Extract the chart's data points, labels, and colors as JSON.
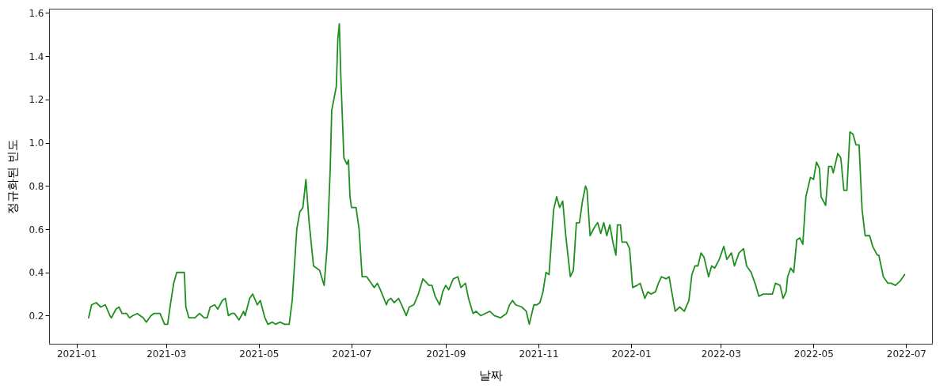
{
  "chart_data": {
    "type": "line",
    "xlabel": "날짜",
    "ylabel": "정규화된 빈도",
    "x": [
      "2021-01-09",
      "2021-01-11",
      "2021-01-14",
      "2021-01-17",
      "2021-01-20",
      "2021-01-23",
      "2021-01-24",
      "2021-01-27",
      "2021-01-29",
      "2021-01-31",
      "2021-02-03",
      "2021-02-05",
      "2021-02-07",
      "2021-02-10",
      "2021-02-14",
      "2021-02-16",
      "2021-02-19",
      "2021-02-21",
      "2021-02-25",
      "2021-02-28",
      "2021-03-02",
      "2021-03-04",
      "2021-03-06",
      "2021-03-08",
      "2021-03-10",
      "2021-03-13",
      "2021-03-14",
      "2021-03-16",
      "2021-03-20",
      "2021-03-23",
      "2021-03-26",
      "2021-03-28",
      "2021-03-30",
      "2021-04-02",
      "2021-04-04",
      "2021-04-07",
      "2021-04-09",
      "2021-04-11",
      "2021-04-13",
      "2021-04-15",
      "2021-04-18",
      "2021-04-21",
      "2021-04-22",
      "2021-04-25",
      "2021-04-27",
      "2021-04-30",
      "2021-05-02",
      "2021-05-05",
      "2021-05-07",
      "2021-05-10",
      "2021-05-12",
      "2021-05-15",
      "2021-05-18",
      "2021-05-21",
      "2021-05-23",
      "2021-05-26",
      "2021-05-28",
      "2021-05-30",
      "2021-06-01",
      "2021-06-03",
      "2021-06-06",
      "2021-06-08",
      "2021-06-10",
      "2021-06-13",
      "2021-06-15",
      "2021-06-17",
      "2021-06-18",
      "2021-06-21",
      "2021-06-22",
      "2021-06-23",
      "2021-06-24",
      "2021-06-26",
      "2021-06-28",
      "2021-06-29",
      "2021-06-30",
      "2021-07-01",
      "2021-07-04",
      "2021-07-06",
      "2021-07-08",
      "2021-07-11",
      "2021-07-14",
      "2021-07-16",
      "2021-07-18",
      "2021-07-20",
      "2021-07-24",
      "2021-07-25",
      "2021-07-27",
      "2021-07-29",
      "2021-08-01",
      "2021-08-03",
      "2021-08-06",
      "2021-08-08",
      "2021-08-11",
      "2021-08-14",
      "2021-08-17",
      "2021-08-21",
      "2021-08-23",
      "2021-08-25",
      "2021-08-28",
      "2021-08-30",
      "2021-09-01",
      "2021-09-03",
      "2021-09-06",
      "2021-09-09",
      "2021-09-11",
      "2021-09-14",
      "2021-09-16",
      "2021-09-19",
      "2021-09-21",
      "2021-09-24",
      "2021-09-27",
      "2021-09-30",
      "2021-10-03",
      "2021-10-07",
      "2021-10-09",
      "2021-10-11",
      "2021-10-13",
      "2021-10-15",
      "2021-10-17",
      "2021-10-21",
      "2021-10-24",
      "2021-10-26",
      "2021-10-29",
      "2021-10-31",
      "2021-11-02",
      "2021-11-04",
      "2021-11-06",
      "2021-11-08",
      "2021-11-11",
      "2021-11-13",
      "2021-11-15",
      "2021-11-17",
      "2021-11-19",
      "2021-11-22",
      "2021-11-24",
      "2021-11-26",
      "2021-11-28",
      "2021-11-30",
      "2021-12-02",
      "2021-12-03",
      "2021-12-05",
      "2021-12-08",
      "2021-12-10",
      "2021-12-12",
      "2021-12-14",
      "2021-12-16",
      "2021-12-18",
      "2021-12-20",
      "2021-12-22",
      "2021-12-23",
      "2021-12-25",
      "2021-12-26",
      "2021-12-29",
      "2021-12-31",
      "2022-01-02",
      "2022-01-05",
      "2022-01-07",
      "2022-01-10",
      "2022-01-12",
      "2022-01-14",
      "2022-01-17",
      "2022-01-19",
      "2022-01-21",
      "2022-01-24",
      "2022-01-26",
      "2022-01-28",
      "2022-01-30",
      "2022-02-02",
      "2022-02-05",
      "2022-02-08",
      "2022-02-10",
      "2022-02-12",
      "2022-02-14",
      "2022-02-16",
      "2022-02-18",
      "2022-02-21",
      "2022-02-23",
      "2022-02-25",
      "2022-02-28",
      "2022-03-03",
      "2022-03-05",
      "2022-03-08",
      "2022-03-10",
      "2022-03-13",
      "2022-03-16",
      "2022-03-18",
      "2022-03-21",
      "2022-03-24",
      "2022-03-26",
      "2022-03-29",
      "2022-04-01",
      "2022-04-04",
      "2022-04-06",
      "2022-04-09",
      "2022-04-11",
      "2022-04-13",
      "2022-04-14",
      "2022-04-16",
      "2022-04-18",
      "2022-04-20",
      "2022-04-22",
      "2022-04-24",
      "2022-04-26",
      "2022-04-29",
      "2022-05-01",
      "2022-05-03",
      "2022-05-05",
      "2022-05-06",
      "2022-05-09",
      "2022-05-11",
      "2022-05-13",
      "2022-05-14",
      "2022-05-17",
      "2022-05-19",
      "2022-05-21",
      "2022-05-23",
      "2022-05-25",
      "2022-05-27",
      "2022-05-29",
      "2022-05-31",
      "2022-06-02",
      "2022-06-04",
      "2022-06-07",
      "2022-06-09",
      "2022-06-12",
      "2022-06-13",
      "2022-06-16",
      "2022-06-19",
      "2022-06-21",
      "2022-06-24",
      "2022-06-27",
      "2022-06-30"
    ],
    "series": [
      {
        "color": "#1f8f1f",
        "values": [
          0.19,
          0.25,
          0.26,
          0.24,
          0.25,
          0.2,
          0.19,
          0.23,
          0.24,
          0.21,
          0.21,
          0.19,
          0.2,
          0.21,
          0.19,
          0.17,
          0.2,
          0.21,
          0.21,
          0.16,
          0.16,
          0.26,
          0.35,
          0.4,
          0.4,
          0.4,
          0.24,
          0.19,
          0.19,
          0.21,
          0.19,
          0.19,
          0.24,
          0.25,
          0.23,
          0.27,
          0.28,
          0.2,
          0.21,
          0.21,
          0.18,
          0.22,
          0.2,
          0.28,
          0.3,
          0.25,
          0.27,
          0.19,
          0.16,
          0.17,
          0.16,
          0.17,
          0.16,
          0.16,
          0.27,
          0.6,
          0.68,
          0.7,
          0.83,
          0.64,
          0.43,
          0.42,
          0.41,
          0.34,
          0.52,
          0.88,
          1.15,
          1.26,
          1.48,
          1.55,
          1.3,
          0.93,
          0.9,
          0.92,
          0.75,
          0.7,
          0.7,
          0.6,
          0.38,
          0.38,
          0.35,
          0.33,
          0.35,
          0.32,
          0.25,
          0.27,
          0.28,
          0.26,
          0.28,
          0.25,
          0.2,
          0.24,
          0.25,
          0.3,
          0.37,
          0.34,
          0.34,
          0.29,
          0.25,
          0.31,
          0.34,
          0.32,
          0.37,
          0.38,
          0.33,
          0.35,
          0.28,
          0.21,
          0.22,
          0.2,
          0.21,
          0.22,
          0.2,
          0.19,
          0.2,
          0.21,
          0.25,
          0.27,
          0.25,
          0.24,
          0.22,
          0.16,
          0.25,
          0.25,
          0.26,
          0.31,
          0.4,
          0.39,
          0.69,
          0.75,
          0.7,
          0.73,
          0.57,
          0.38,
          0.41,
          0.63,
          0.63,
          0.73,
          0.8,
          0.78,
          0.57,
          0.61,
          0.63,
          0.58,
          0.63,
          0.57,
          0.62,
          0.54,
          0.48,
          0.62,
          0.62,
          0.54,
          0.54,
          0.51,
          0.33,
          0.34,
          0.35,
          0.28,
          0.31,
          0.3,
          0.31,
          0.35,
          0.38,
          0.37,
          0.38,
          0.3,
          0.22,
          0.24,
          0.22,
          0.27,
          0.39,
          0.43,
          0.43,
          0.49,
          0.47,
          0.38,
          0.43,
          0.42,
          0.46,
          0.52,
          0.46,
          0.49,
          0.43,
          0.49,
          0.51,
          0.43,
          0.4,
          0.34,
          0.29,
          0.3,
          0.3,
          0.3,
          0.35,
          0.34,
          0.28,
          0.31,
          0.38,
          0.42,
          0.4,
          0.55,
          0.56,
          0.53,
          0.75,
          0.84,
          0.83,
          0.91,
          0.88,
          0.75,
          0.71,
          0.89,
          0.89,
          0.86,
          0.95,
          0.93,
          0.78,
          0.78,
          1.05,
          1.04,
          0.99,
          0.99,
          0.69,
          0.57,
          0.57,
          0.52,
          0.48,
          0.48,
          0.38,
          0.35,
          0.35,
          0.34,
          0.36,
          0.39
        ]
      }
    ],
    "xlim": [
      "2020-12-14",
      "2022-07-18"
    ],
    "xticks": [
      "2021-01",
      "2021-03",
      "2021-05",
      "2021-07",
      "2021-09",
      "2021-11",
      "2022-01",
      "2022-03",
      "2022-05",
      "2022-07"
    ],
    "ylim": [
      0.07,
      1.62
    ],
    "yticks": [
      0.2,
      0.4,
      0.6,
      0.8,
      {
        "value": 1,
        "label": "1.0"
      },
      1.2,
      1.4,
      1.6
    ],
    "grid": false,
    "marker": "none",
    "line_style": "solid"
  }
}
